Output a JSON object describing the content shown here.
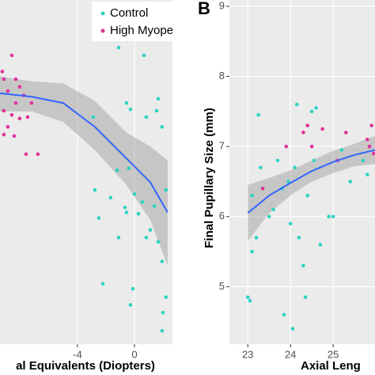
{
  "chart_data": [
    {
      "type": "scatter",
      "xlabel": "al Equivalents (Diopters)",
      "xlim": [
        -9.44,
        2.67
      ],
      "ylim": [
        4.18,
        9.09
      ],
      "xticks": [
        -4,
        0
      ],
      "series": [
        {
          "name": "Control",
          "color": "#2ed3c2",
          "x": [
            -1.11,
            0.67,
            -2.89,
            -0.56,
            -0.28,
            0.83,
            1.67,
            1.56,
            1.94,
            -1.22,
            -0.39,
            -2.78,
            -1.67,
            0,
            0.56,
            1.39,
            2.22,
            -0.56,
            0.28,
            -2.5,
            -1.11,
            1.11,
            0.83,
            1.67,
            -2.22,
            -0.11,
            -0.28,
            1.94,
            2.22,
            2.0,
            1.94,
            -0.67
          ],
          "values": [
            8.41,
            8.3,
            7.42,
            7.62,
            7.53,
            7.42,
            7.68,
            7.51,
            7.28,
            6.66,
            6.69,
            6.38,
            6.27,
            6.32,
            6.21,
            6.15,
            6.38,
            6.06,
            6.04,
            5.98,
            5.7,
            5.81,
            5.7,
            5.64,
            5.04,
            4.97,
            4.74,
            5.36,
            4.85,
            4.63,
            4.37,
            6.13
          ]
        },
        {
          "name": "High Myope",
          "color": "#e0319b",
          "x": [
            -8.61,
            -8.33,
            -9.17,
            -8.89,
            -8.06,
            -7.78,
            -8.33,
            -7.22,
            -9.17,
            -8.61,
            -8.06,
            -7.5,
            -8.89,
            -8.44,
            -7.61,
            -9.17,
            -6.78,
            -9.28
          ],
          "values": [
            8.3,
            7.96,
            7.96,
            7.79,
            7.85,
            7.73,
            7.62,
            7.62,
            7.51,
            7.45,
            7.4,
            7.42,
            7.28,
            7.15,
            6.89,
            7.17,
            6.89,
            8.07
          ]
        }
      ],
      "trend": {
        "color": "#3366ff",
        "x": [
          -9.44,
          -7.22,
          -5,
          -2.78,
          -0.56,
          1.11,
          2.33
        ],
        "values": [
          7.76,
          7.71,
          7.62,
          7.28,
          6.83,
          6.49,
          6.06
        ],
        "ci_lower": [
          7.5,
          7.5,
          7.35,
          6.95,
          6.45,
          5.95,
          5.3
        ],
        "ci_upper": [
          8.0,
          7.93,
          7.9,
          7.65,
          7.2,
          7.0,
          6.8
        ]
      }
    },
    {
      "type": "scatter",
      "panel_label": "B",
      "xlabel": "Axial Leng",
      "ylabel": "Final Pupillary Size (mm)",
      "xlim": [
        22.57,
        25.98
      ],
      "ylim": [
        4.18,
        9.09
      ],
      "xticks": [
        23,
        24,
        25
      ],
      "yticks": [
        5,
        6,
        7,
        8,
        9
      ],
      "grid": true,
      "series": [
        {
          "name": "Control",
          "color": "#2ed3c2",
          "x": [
            23.0,
            23.05,
            23.1,
            23.2,
            23.1,
            23.3,
            23.25,
            23.5,
            23.6,
            23.7,
            23.8,
            23.9,
            23.95,
            24.0,
            24.1,
            24.15,
            24.2,
            24.3,
            24.35,
            24.4,
            24.05,
            23.85,
            24.5,
            24.6,
            24.55,
            24.7,
            24.9,
            25.0,
            25.2,
            25.4,
            25.7,
            25.8
          ],
          "values": [
            4.85,
            4.8,
            5.5,
            5.7,
            6.3,
            6.7,
            7.45,
            6.0,
            6.1,
            6.8,
            6.4,
            7.0,
            6.5,
            5.9,
            6.7,
            7.6,
            5.7,
            5.3,
            4.85,
            6.3,
            4.4,
            4.6,
            7.5,
            7.55,
            6.8,
            5.6,
            6.0,
            6.0,
            6.95,
            6.5,
            6.8,
            6.6
          ]
        },
        {
          "name": "High Myope",
          "color": "#e0319b",
          "x": [
            23.35,
            23.9,
            24.3,
            24.4,
            24.5,
            24.75,
            25.1,
            25.3,
            25.8,
            25.9,
            25.95,
            25.85
          ],
          "values": [
            6.4,
            7.0,
            7.2,
            7.3,
            7.0,
            7.25,
            6.8,
            7.2,
            7.1,
            7.3,
            6.9,
            7.0
          ]
        }
      ],
      "trend": {
        "color": "#3366ff",
        "x": [
          23.0,
          23.5,
          24.0,
          24.5,
          25.0,
          25.5,
          25.98
        ],
        "values": [
          6.05,
          6.3,
          6.48,
          6.65,
          6.78,
          6.88,
          6.95
        ],
        "ci_lower": [
          5.65,
          6.05,
          6.3,
          6.5,
          6.62,
          6.72,
          6.75
        ],
        "ci_upper": [
          6.45,
          6.55,
          6.66,
          6.8,
          6.94,
          7.04,
          7.15
        ]
      }
    }
  ]
}
